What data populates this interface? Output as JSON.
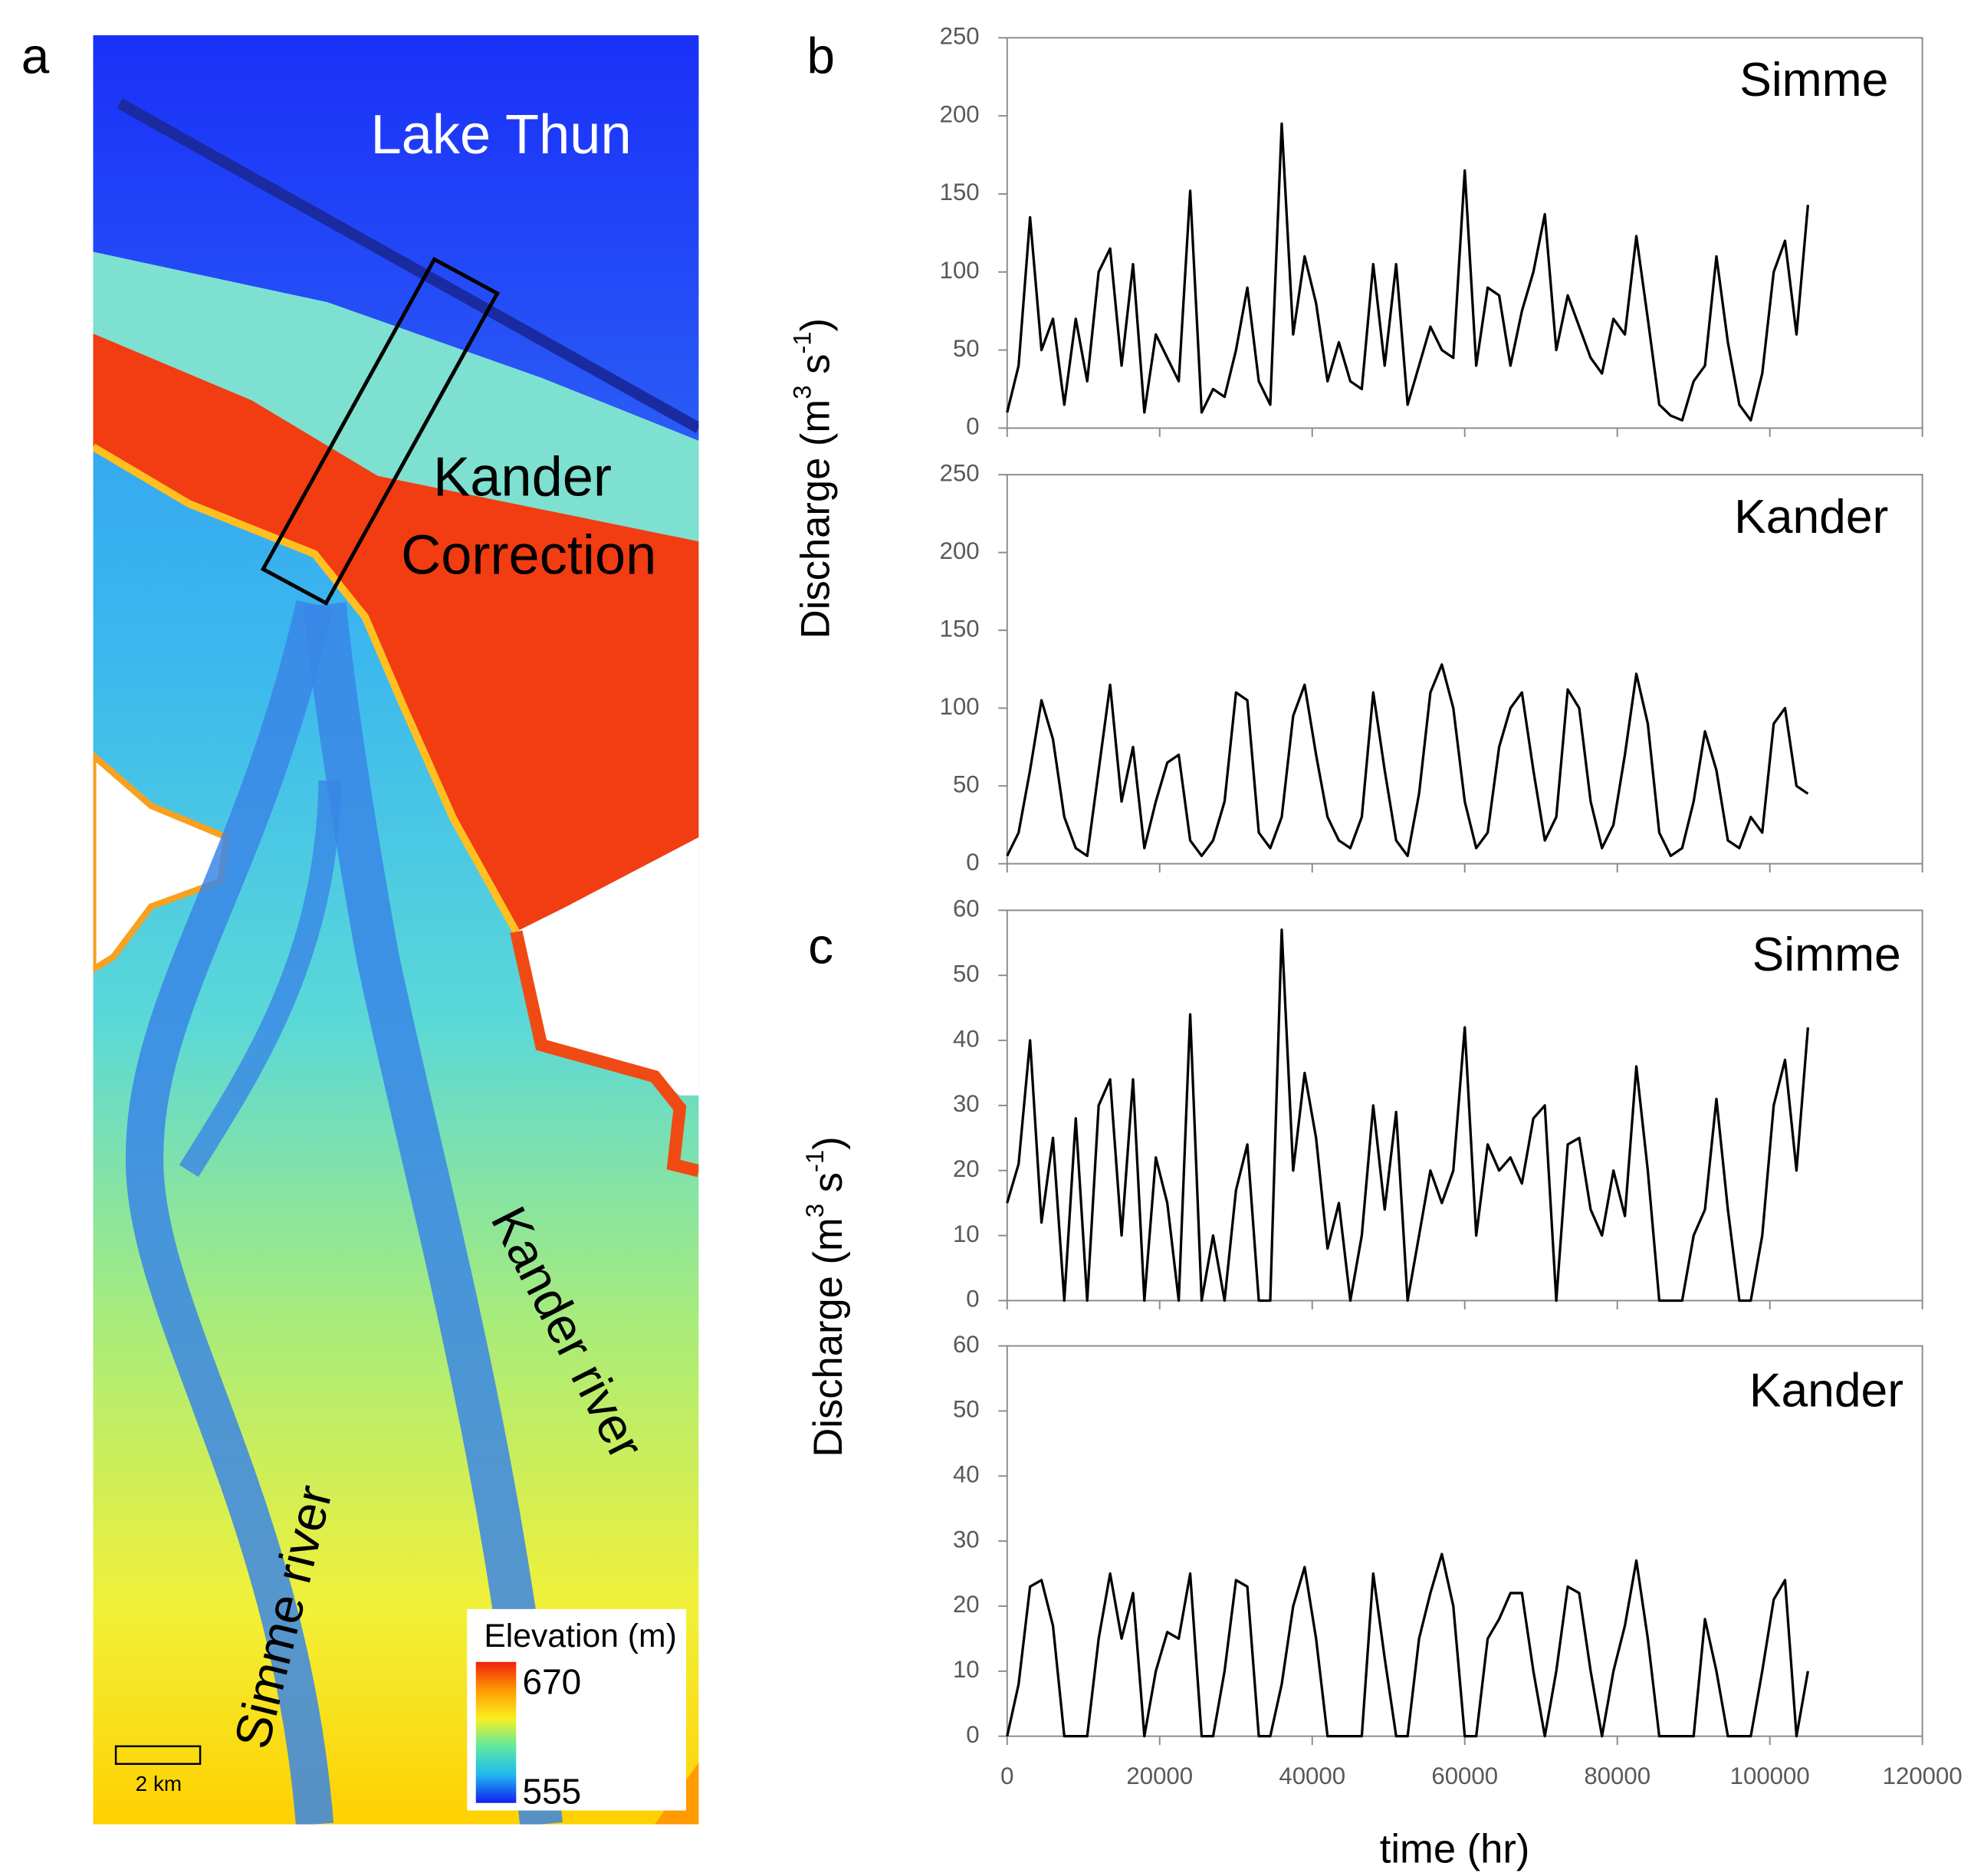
{
  "chart_data": [
    {
      "type": "map",
      "panel_label": "a",
      "labels": [
        "Lake Thun",
        "Kander",
        "Correction",
        "Kander river",
        "Simme river"
      ],
      "colorbar": {
        "title": "Elevation (m)",
        "max": 670,
        "min": 555
      },
      "scale_bar": "2 km"
    },
    {
      "type": "line",
      "panel_label": "b",
      "title": "Simme",
      "ylabel": [
        "Discharge (m",
        "3",
        " s",
        "-1",
        ")"
      ],
      "color": "#000000",
      "xlim": [
        0,
        120000
      ],
      "xticks": [
        0,
        20000,
        40000,
        60000,
        80000,
        100000,
        120000
      ],
      "xtick_labels": false,
      "ylim": [
        0,
        250
      ],
      "yticks": [
        0,
        50,
        100,
        150,
        200,
        250
      ],
      "x": [
        0,
        1500,
        3000,
        4500,
        6000,
        7500,
        9000,
        10500,
        12000,
        13500,
        15000,
        16500,
        18000,
        19500,
        21000,
        22500,
        24000,
        25500,
        27000,
        28500,
        30000,
        31500,
        33000,
        34500,
        36000,
        37500,
        39000,
        40500,
        42000,
        43500,
        45000,
        46500,
        48000,
        49500,
        51000,
        52500,
        54000,
        55500,
        57000,
        58500,
        60000,
        61500,
        63000,
        64500,
        66000,
        67500,
        69000,
        70500,
        72000,
        73500,
        75000,
        76500,
        78000,
        79500,
        81000,
        82500,
        84000,
        85500,
        87000,
        88500,
        90000,
        91500,
        93000,
        94500,
        96000,
        97500,
        99000,
        100500,
        102000,
        103500,
        105000
      ],
      "values": [
        10,
        40,
        135,
        50,
        70,
        15,
        70,
        30,
        100,
        115,
        40,
        105,
        10,
        60,
        45,
        30,
        152,
        10,
        25,
        20,
        50,
        90,
        30,
        15,
        195,
        60,
        110,
        80,
        30,
        55,
        30,
        25,
        105,
        40,
        105,
        15,
        40,
        65,
        50,
        45,
        165,
        40,
        90,
        85,
        40,
        75,
        100,
        137,
        50,
        85,
        65,
        45,
        35,
        70,
        60,
        123,
        70,
        15,
        8,
        5,
        30,
        40,
        110,
        55,
        15,
        5,
        35,
        100,
        120,
        60,
        143
      ]
    },
    {
      "type": "line",
      "title": "Kander",
      "color": "#000000",
      "xlim": [
        0,
        120000
      ],
      "xticks": [
        0,
        20000,
        40000,
        60000,
        80000,
        100000,
        120000
      ],
      "xtick_labels": false,
      "ylim": [
        0,
        250
      ],
      "yticks": [
        0,
        50,
        100,
        150,
        200,
        250
      ],
      "x": [
        0,
        1500,
        3000,
        4500,
        6000,
        7500,
        9000,
        10500,
        12000,
        13500,
        15000,
        16500,
        18000,
        19500,
        21000,
        22500,
        24000,
        25500,
        27000,
        28500,
        30000,
        31500,
        33000,
        34500,
        36000,
        37500,
        39000,
        40500,
        42000,
        43500,
        45000,
        46500,
        48000,
        49500,
        51000,
        52500,
        54000,
        55500,
        57000,
        58500,
        60000,
        61500,
        63000,
        64500,
        66000,
        67500,
        69000,
        70500,
        72000,
        73500,
        75000,
        76500,
        78000,
        79500,
        81000,
        82500,
        84000,
        85500,
        87000,
        88500,
        90000,
        91500,
        93000,
        94500,
        96000,
        97500,
        99000,
        100500,
        102000,
        103500,
        105000
      ],
      "values": [
        5,
        20,
        60,
        105,
        80,
        30,
        10,
        5,
        60,
        115,
        40,
        75,
        10,
        40,
        65,
        70,
        15,
        5,
        15,
        40,
        110,
        105,
        20,
        10,
        30,
        95,
        115,
        70,
        30,
        15,
        10,
        30,
        110,
        60,
        15,
        5,
        45,
        110,
        128,
        100,
        40,
        10,
        20,
        75,
        100,
        110,
        60,
        15,
        30,
        112,
        100,
        40,
        10,
        25,
        70,
        122,
        90,
        20,
        5,
        10,
        40,
        85,
        60,
        15,
        10,
        30,
        20,
        90,
        100,
        50,
        45
      ]
    },
    {
      "type": "line",
      "panel_label": "c",
      "title": "Simme",
      "ylabel": [
        "Discharge (m",
        "3",
        " s",
        "-1",
        ")"
      ],
      "color": "#000000",
      "xlim": [
        0,
        120000
      ],
      "xticks": [
        0,
        20000,
        40000,
        60000,
        80000,
        100000,
        120000
      ],
      "xtick_labels": false,
      "ylim": [
        0,
        60
      ],
      "yticks": [
        0,
        10,
        20,
        30,
        40,
        50,
        60
      ],
      "x": [
        0,
        1500,
        3000,
        4500,
        6000,
        7500,
        9000,
        10500,
        12000,
        13500,
        15000,
        16500,
        18000,
        19500,
        21000,
        22500,
        24000,
        25500,
        27000,
        28500,
        30000,
        31500,
        33000,
        34500,
        36000,
        37500,
        39000,
        40500,
        42000,
        43500,
        45000,
        46500,
        48000,
        49500,
        51000,
        52500,
        54000,
        55500,
        57000,
        58500,
        60000,
        61500,
        63000,
        64500,
        66000,
        67500,
        69000,
        70500,
        72000,
        73500,
        75000,
        76500,
        78000,
        79500,
        81000,
        82500,
        84000,
        85500,
        87000,
        88500,
        90000,
        91500,
        93000,
        94500,
        96000,
        97500,
        99000,
        100500,
        102000,
        103500,
        105000
      ],
      "values": [
        15,
        21,
        40,
        12,
        25,
        0,
        28,
        0,
        30,
        34,
        10,
        34,
        0,
        22,
        15,
        0,
        44,
        0,
        10,
        0,
        17,
        24,
        0,
        0,
        57,
        20,
        35,
        25,
        8,
        15,
        0,
        10,
        30,
        14,
        29,
        0,
        10,
        20,
        15,
        20,
        42,
        10,
        24,
        20,
        22,
        18,
        28,
        30,
        0,
        24,
        25,
        14,
        10,
        20,
        13,
        36,
        20,
        0,
        0,
        0,
        10,
        14,
        31,
        14,
        0,
        0,
        10,
        30,
        37,
        20,
        42
      ]
    },
    {
      "type": "line",
      "title": "Kander",
      "xlabel": "time (hr)",
      "color": "#000000",
      "xlim": [
        0,
        120000
      ],
      "xticks": [
        0,
        20000,
        40000,
        60000,
        80000,
        100000,
        120000
      ],
      "xtick_labels": true,
      "ylim": [
        0,
        60
      ],
      "yticks": [
        0,
        10,
        20,
        30,
        40,
        50,
        60
      ],
      "x": [
        0,
        1500,
        3000,
        4500,
        6000,
        7500,
        9000,
        10500,
        12000,
        13500,
        15000,
        16500,
        18000,
        19500,
        21000,
        22500,
        24000,
        25500,
        27000,
        28500,
        30000,
        31500,
        33000,
        34500,
        36000,
        37500,
        39000,
        40500,
        42000,
        43500,
        45000,
        46500,
        48000,
        49500,
        51000,
        52500,
        54000,
        55500,
        57000,
        58500,
        60000,
        61500,
        63000,
        64500,
        66000,
        67500,
        69000,
        70500,
        72000,
        73500,
        75000,
        76500,
        78000,
        79500,
        81000,
        82500,
        84000,
        85500,
        87000,
        88500,
        90000,
        91500,
        93000,
        94500,
        96000,
        97500,
        99000,
        100500,
        102000,
        103500,
        105000
      ],
      "values": [
        0,
        8,
        23,
        24,
        17,
        0,
        0,
        0,
        15,
        25,
        15,
        22,
        0,
        10,
        16,
        15,
        25,
        0,
        0,
        10,
        24,
        23,
        0,
        0,
        8,
        20,
        26,
        15,
        0,
        0,
        0,
        0,
        25,
        12,
        0,
        0,
        15,
        22,
        28,
        20,
        0,
        0,
        15,
        18,
        22,
        22,
        10,
        0,
        10,
        23,
        22,
        10,
        0,
        10,
        17,
        27,
        15,
        0,
        0,
        0,
        0,
        18,
        10,
        0,
        0,
        0,
        10,
        21,
        24,
        0,
        10
      ]
    }
  ]
}
